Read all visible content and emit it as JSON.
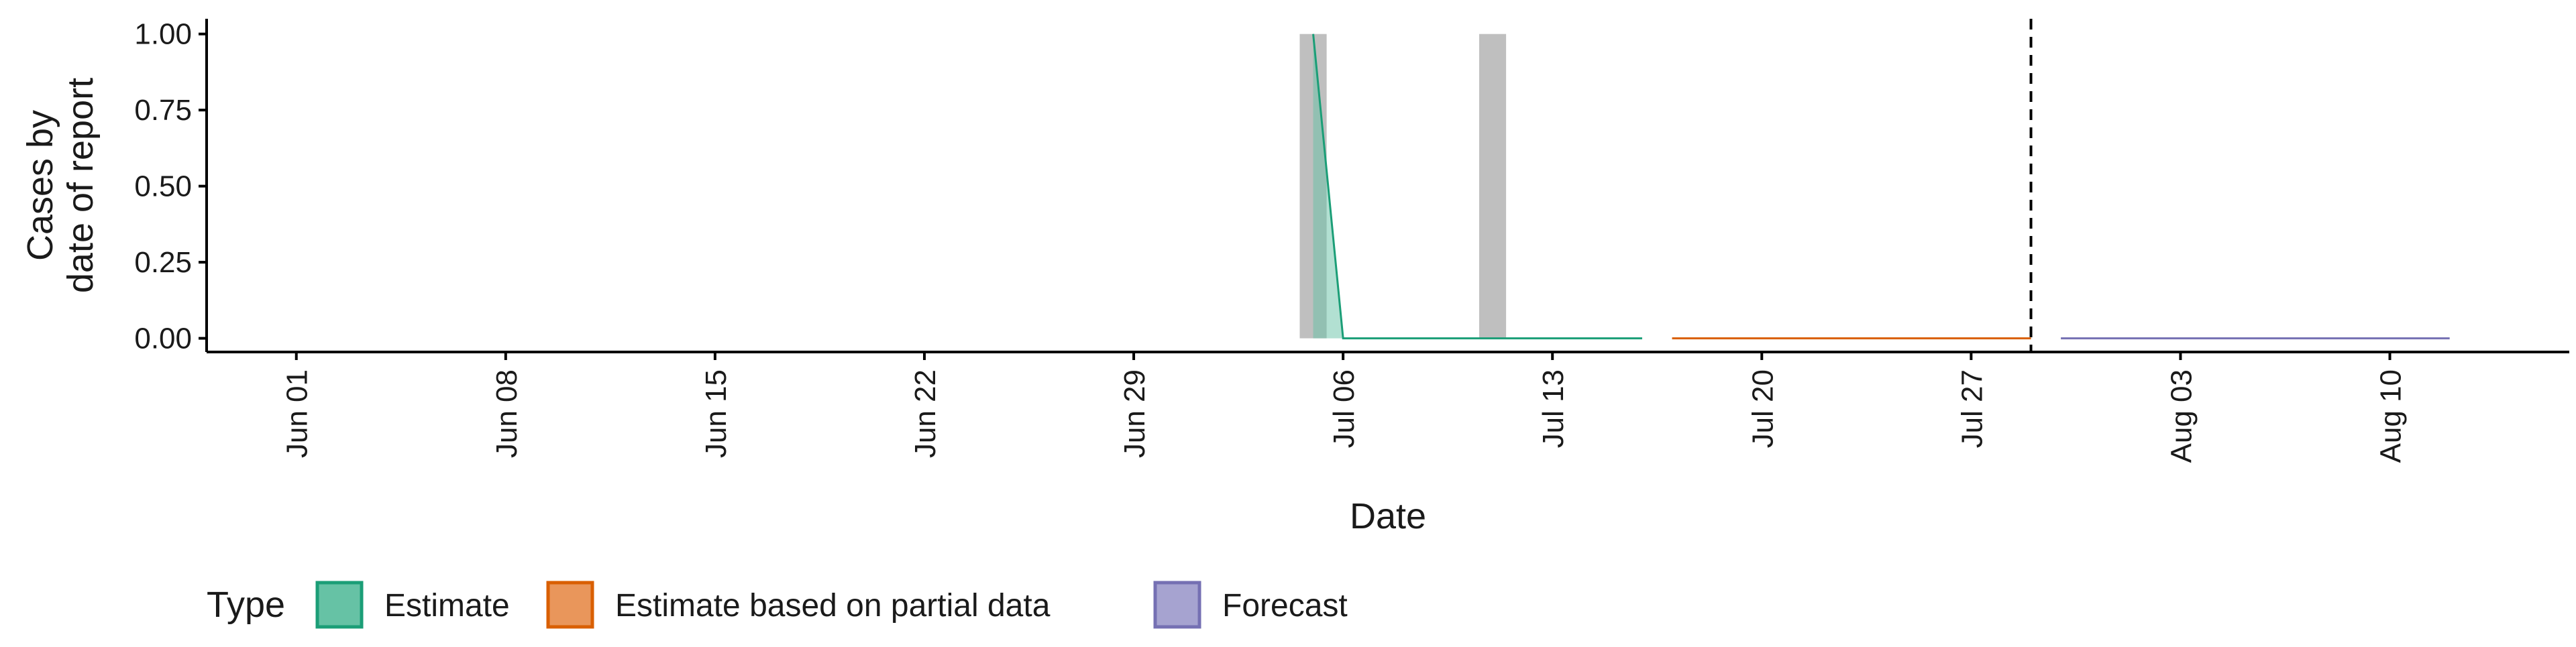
{
  "chart_data": {
    "type": "area",
    "xlabel": "Date",
    "ylabel_lines": [
      "Cases by",
      "date of report"
    ],
    "x_range": [
      "2020-05-29",
      "2020-08-16"
    ],
    "ylim": [
      -0.045,
      1.05
    ],
    "y_ticks": [
      0.0,
      0.25,
      0.5,
      0.75,
      1.0
    ],
    "y_tick_labels": [
      "0.00",
      "0.25",
      "0.50",
      "0.75",
      "1.00"
    ],
    "x_ticks": [
      "2020-06-01",
      "2020-06-08",
      "2020-06-15",
      "2020-06-22",
      "2020-06-29",
      "2020-07-06",
      "2020-07-13",
      "2020-07-20",
      "2020-07-27",
      "2020-08-03",
      "2020-08-10"
    ],
    "x_tick_labels": [
      "Jun 01",
      "Jun 08",
      "Jun 15",
      "Jun 22",
      "Jun 29",
      "Jul 06",
      "Jul 13",
      "Jul 20",
      "Jul 27",
      "Aug 03",
      "Aug 10"
    ],
    "reported_cases": [
      {
        "date": "2020-07-05",
        "value": 1
      },
      {
        "date": "2020-07-11",
        "value": 1
      }
    ],
    "series": [
      {
        "name": "Estimate",
        "color": "#1b9e77",
        "fill": "#66c2a5",
        "points": [
          {
            "date": "2020-07-05",
            "value": 1.0
          },
          {
            "date": "2020-07-06",
            "value": 0.0
          },
          {
            "date": "2020-07-16",
            "value": 0.0
          }
        ]
      },
      {
        "name": "Estimate based on partial data",
        "color": "#d95f02",
        "fill": "#e9965b",
        "points": [
          {
            "date": "2020-07-17",
            "value": 0.0
          },
          {
            "date": "2020-07-29",
            "value": 0.0
          }
        ]
      },
      {
        "name": "Forecast",
        "color": "#7570b3",
        "fill": "#a6a3d0",
        "points": [
          {
            "date": "2020-07-30",
            "value": 0.0
          },
          {
            "date": "2020-08-12",
            "value": 0.0
          }
        ]
      }
    ],
    "forecast_line_date": "2020-07-29",
    "grid": false,
    "legend": {
      "title": "Type",
      "position": "bottom-left",
      "entries": [
        "Estimate",
        "Estimate based on partial data",
        "Forecast"
      ]
    }
  }
}
